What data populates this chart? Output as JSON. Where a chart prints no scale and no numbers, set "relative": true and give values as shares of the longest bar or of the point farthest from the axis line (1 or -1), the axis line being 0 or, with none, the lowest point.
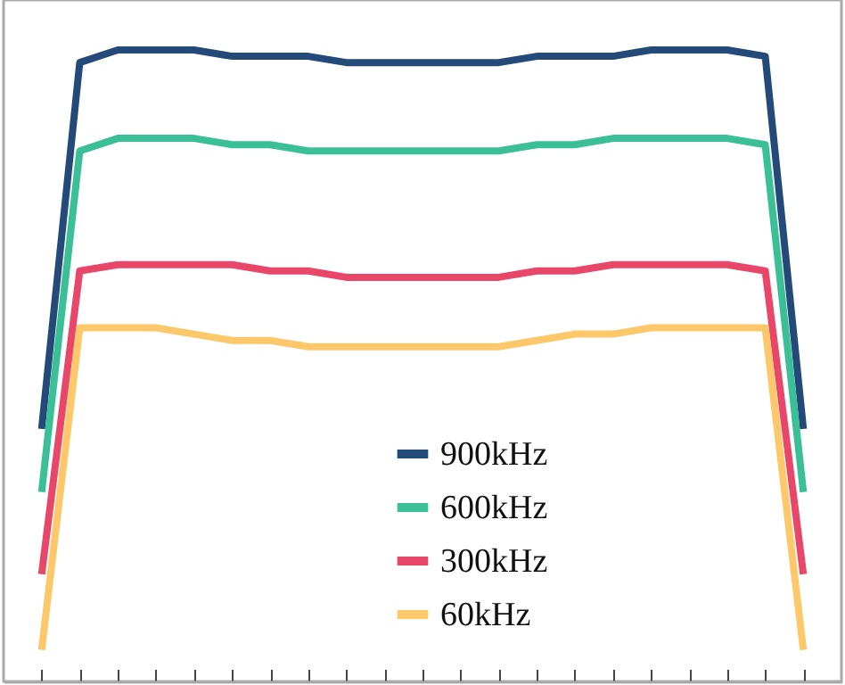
{
  "chart_data": {
    "type": "line",
    "relative": true,
    "tick_labels": false,
    "legend": "bottom right",
    "categories": [
      null,
      null,
      null,
      null,
      null,
      null,
      null,
      null,
      null,
      null,
      null,
      null,
      null,
      null,
      null,
      null,
      null,
      null,
      null,
      null,
      null
    ],
    "series": [
      {
        "name": "900kHz",
        "color": "#234a78",
        "values": [
          0.4,
          0.98,
          1,
          1,
          1,
          0.99,
          0.99,
          0.99,
          0.98,
          0.98,
          0.98,
          0.98,
          0.98,
          0.99,
          0.99,
          0.99,
          1,
          1,
          1,
          0.99,
          0.4
        ]
      },
      {
        "name": "600kHz",
        "color": "#3bbf96",
        "values": [
          0.3,
          0.84,
          0.86,
          0.86,
          0.86,
          0.85,
          0.85,
          0.84,
          0.84,
          0.84,
          0.84,
          0.84,
          0.84,
          0.85,
          0.85,
          0.86,
          0.86,
          0.86,
          0.86,
          0.85,
          0.3
        ]
      },
      {
        "name": "300kHz",
        "color": "#e8476a",
        "values": [
          0.17,
          0.65,
          0.66,
          0.66,
          0.66,
          0.66,
          0.65,
          0.65,
          0.64,
          0.64,
          0.64,
          0.64,
          0.64,
          0.65,
          0.65,
          0.66,
          0.66,
          0.66,
          0.66,
          0.65,
          0.17
        ]
      },
      {
        "name": "60kHz",
        "color": "#fcc86a",
        "values": [
          0.05,
          0.56,
          0.56,
          0.56,
          0.55,
          0.54,
          0.54,
          0.53,
          0.53,
          0.53,
          0.53,
          0.53,
          0.53,
          0.54,
          0.55,
          0.55,
          0.56,
          0.56,
          0.56,
          0.56,
          0.05
        ]
      }
    ]
  }
}
